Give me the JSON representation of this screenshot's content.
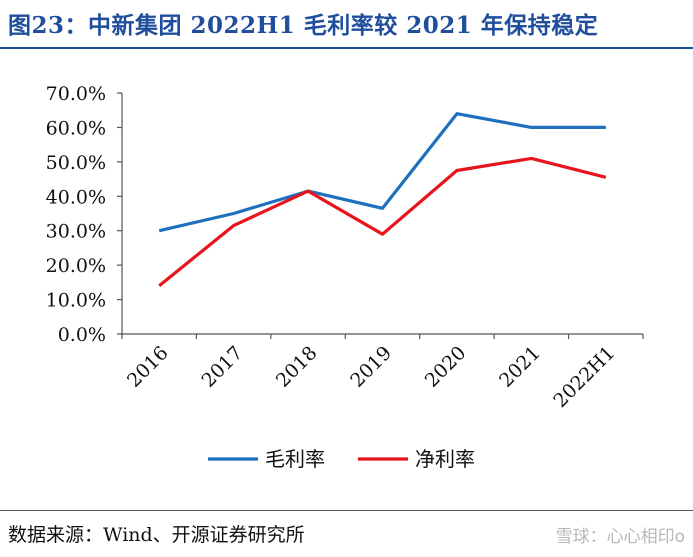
{
  "title": "图23：中新集团 2022H1 毛利率较 2021 年保持稳定",
  "source": "数据来源：Wind、开源证券研究所",
  "watermark": "雪球：心心相印o",
  "colors": {
    "title": "#1f4e9c",
    "gross": "#1f6fbf",
    "net": "#e8141b"
  },
  "chart_data": {
    "type": "line",
    "title": "",
    "xlabel": "",
    "ylabel": "",
    "categories": [
      "2016",
      "2017",
      "2018",
      "2019",
      "2020",
      "2021",
      "2022H1"
    ],
    "ylim": [
      0,
      70
    ],
    "yticks": [
      "0.0%",
      "10.0%",
      "20.0%",
      "30.0%",
      "40.0%",
      "50.0%",
      "60.0%",
      "70.0%"
    ],
    "grid": false,
    "legend_position": "bottom",
    "series": [
      {
        "name": "毛利率",
        "color": "#1f6fbf",
        "values": [
          30.0,
          35.0,
          41.5,
          36.5,
          64.0,
          60.0,
          60.0
        ]
      },
      {
        "name": "净利率",
        "color": "#e8141b",
        "values": [
          14.0,
          31.5,
          41.5,
          29.0,
          47.5,
          51.0,
          45.5
        ]
      }
    ]
  }
}
